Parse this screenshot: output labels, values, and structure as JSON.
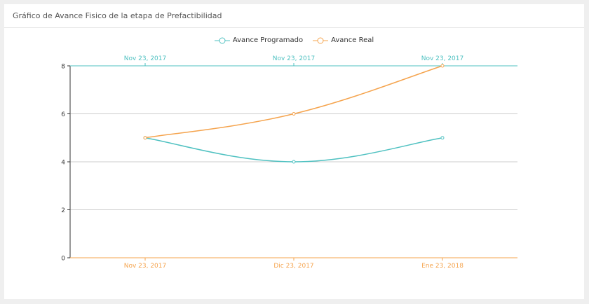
{
  "card": {
    "title": "Gráfico de Avance Fisico de la etapa de Prefactibilidad"
  },
  "chart_data": {
    "type": "line",
    "title": "Gráfico de Avance Fisico de la etapa de Prefactibilidad",
    "ylim": [
      0,
      8
    ],
    "yticks": [
      0,
      2,
      4,
      6,
      8
    ],
    "grid": true,
    "legend_position": "top-center",
    "series": [
      {
        "name": "Avance Programado",
        "color": "#4fc1c1",
        "axis": "top",
        "x": [
          "Nov 23, 2017",
          "Nov 23, 2017",
          "Nov 23, 2017"
        ],
        "values": [
          5,
          4,
          5
        ]
      },
      {
        "name": "Avance Real",
        "color": "#f5a44e",
        "axis": "bottom",
        "x": [
          "Nov 23, 2017",
          "Dic 23, 2017",
          "Ene 23, 2018"
        ],
        "values": [
          5,
          6,
          8
        ]
      }
    ]
  }
}
